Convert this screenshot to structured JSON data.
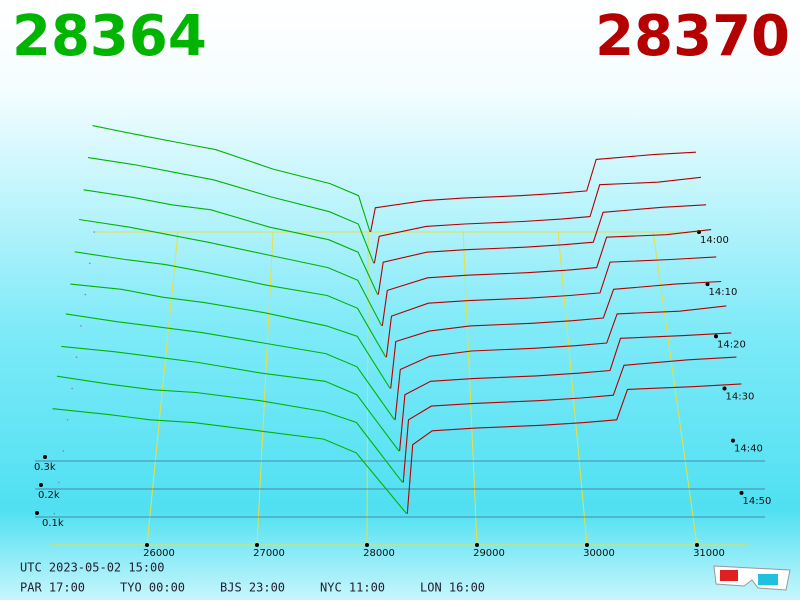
{
  "chart_data": {
    "type": "depth3d",
    "bid_price": 28364,
    "ask_price": 28370,
    "bid_color": "#00b400",
    "ask_color": "#b40000",
    "xlim": [
      25118,
      31482
    ],
    "xticks": [
      26000,
      27000,
      28000,
      29000,
      30000,
      31000
    ],
    "ylim": [
      0,
      1
    ],
    "yticks": [
      {
        "value": 0.1,
        "label": "0.1k"
      },
      {
        "value": 0.2,
        "label": "0.2k"
      },
      {
        "value": 0.3,
        "label": "0.3k"
      }
    ],
    "zlim": [
      840,
      900
    ],
    "zticks": [
      {
        "value": 840,
        "label": "14:00"
      },
      {
        "value": 850,
        "label": "14:10"
      },
      {
        "value": 860,
        "label": "14:20"
      },
      {
        "value": 870,
        "label": "14:30"
      },
      {
        "value": 880,
        "label": "14:40"
      },
      {
        "value": 890,
        "label": "14:50"
      }
    ],
    "timestamp": "UTC 2023-05-02 15:00",
    "clocks": [
      "PAR 17:00",
      "TYO 00:00",
      "BJS 23:00",
      "NYC 11:00",
      "LON 16:00"
    ],
    "snapshots": [
      {
        "time": 840,
        "bids": {
          "x": [
            25100,
            25600,
            26000,
            26400,
            27000,
            27600,
            27900,
            28020
          ],
          "values": [
            0.44,
            0.4,
            0.37,
            0.34,
            0.26,
            0.2,
            0.15,
            0
          ]
        },
        "asks": {
          "x": [
            28026,
            28076,
            28600,
            29000,
            29600,
            30000,
            30300,
            30400,
            31000,
            31450
          ],
          "values": [
            0,
            0.1,
            0.13,
            0.14,
            0.15,
            0.16,
            0.17,
            0.3,
            0.32,
            0.33
          ]
        }
      },
      {
        "time": 846,
        "bids": {
          "x": [
            25100,
            25600,
            26000,
            26400,
            27000,
            27600,
            27900,
            28060
          ],
          "values": [
            0.43,
            0.4,
            0.37,
            0.34,
            0.27,
            0.21,
            0.16,
            0
          ]
        },
        "asks": {
          "x": [
            28066,
            28116,
            28600,
            29000,
            29600,
            30000,
            30300,
            30400,
            31000,
            31450
          ],
          "values": [
            0,
            0.11,
            0.15,
            0.16,
            0.17,
            0.18,
            0.19,
            0.32,
            0.33,
            0.35
          ]
        }
      },
      {
        "time": 852,
        "bids": {
          "x": [
            25100,
            25600,
            26000,
            26400,
            27000,
            27600,
            27900,
            28100
          ],
          "values": [
            0.42,
            0.39,
            0.36,
            0.34,
            0.27,
            0.22,
            0.17,
            0
          ]
        },
        "asks": {
          "x": [
            28106,
            28156,
            28600,
            29000,
            29600,
            30000,
            30300,
            30400,
            31000,
            31450
          ],
          "values": [
            0,
            0.13,
            0.17,
            0.18,
            0.19,
            0.2,
            0.21,
            0.33,
            0.35,
            0.36
          ]
        }
      },
      {
        "time": 858,
        "bids": {
          "x": [
            25100,
            25600,
            26000,
            26400,
            27000,
            27600,
            27900,
            28140
          ],
          "values": [
            0.42,
            0.39,
            0.36,
            0.33,
            0.28,
            0.23,
            0.18,
            0
          ]
        },
        "asks": {
          "x": [
            28146,
            28196,
            28600,
            29000,
            29600,
            30000,
            30300,
            30400,
            31000,
            31450
          ],
          "values": [
            0,
            0.14,
            0.19,
            0.2,
            0.21,
            0.22,
            0.23,
            0.35,
            0.36,
            0.38
          ]
        }
      },
      {
        "time": 864,
        "bids": {
          "x": [
            25100,
            25600,
            26000,
            26400,
            27000,
            27600,
            27900,
            28180
          ],
          "values": [
            0.41,
            0.38,
            0.36,
            0.33,
            0.28,
            0.24,
            0.19,
            0
          ]
        },
        "asks": {
          "x": [
            28186,
            28236,
            28600,
            29000,
            29600,
            30000,
            30300,
            30400,
            31000,
            31450
          ],
          "values": [
            0,
            0.16,
            0.21,
            0.22,
            0.23,
            0.24,
            0.25,
            0.37,
            0.38,
            0.39
          ]
        }
      },
      {
        "time": 870,
        "bids": {
          "x": [
            25100,
            25600,
            26000,
            26400,
            27000,
            27600,
            27900,
            28220
          ],
          "values": [
            0.4,
            0.38,
            0.35,
            0.33,
            0.29,
            0.24,
            0.2,
            0
          ]
        },
        "asks": {
          "x": [
            28226,
            28276,
            28600,
            29000,
            29600,
            30000,
            30300,
            30400,
            31000,
            31450
          ],
          "values": [
            0,
            0.18,
            0.22,
            0.24,
            0.25,
            0.26,
            0.27,
            0.38,
            0.4,
            0.41
          ]
        }
      },
      {
        "time": 876,
        "bids": {
          "x": [
            25100,
            25600,
            26000,
            26400,
            27000,
            27600,
            27900,
            28260
          ],
          "values": [
            0.4,
            0.37,
            0.35,
            0.33,
            0.29,
            0.25,
            0.2,
            0
          ]
        },
        "asks": {
          "x": [
            28266,
            28316,
            28600,
            29000,
            29600,
            30000,
            30300,
            30400,
            31000,
            31450
          ],
          "values": [
            0,
            0.19,
            0.24,
            0.26,
            0.27,
            0.28,
            0.29,
            0.4,
            0.41,
            0.43
          ]
        }
      },
      {
        "time": 882,
        "bids": {
          "x": [
            25100,
            25600,
            26000,
            26400,
            27000,
            27600,
            27900,
            28300
          ],
          "values": [
            0.39,
            0.37,
            0.35,
            0.33,
            0.29,
            0.26,
            0.21,
            0
          ]
        },
        "asks": {
          "x": [
            28306,
            28356,
            28600,
            29000,
            29600,
            30000,
            30300,
            30400,
            31000,
            31450
          ],
          "values": [
            0,
            0.21,
            0.26,
            0.27,
            0.28,
            0.29,
            0.3,
            0.42,
            0.43,
            0.44
          ]
        }
      },
      {
        "time": 888,
        "bids": {
          "x": [
            25100,
            25600,
            26000,
            26400,
            27000,
            27600,
            27900,
            28330
          ],
          "values": [
            0.39,
            0.36,
            0.34,
            0.33,
            0.3,
            0.26,
            0.22,
            0
          ]
        },
        "asks": {
          "x": [
            28336,
            28386,
            28600,
            29000,
            29600,
            30000,
            30300,
            30400,
            31000,
            31450
          ],
          "values": [
            0,
            0.23,
            0.28,
            0.29,
            0.3,
            0.31,
            0.32,
            0.43,
            0.45,
            0.46
          ]
        }
      },
      {
        "time": 894,
        "bids": {
          "x": [
            25100,
            25600,
            26000,
            26400,
            27000,
            27600,
            27900,
            28364
          ],
          "values": [
            0.38,
            0.36,
            0.34,
            0.33,
            0.3,
            0.27,
            0.22,
            0
          ]
        },
        "asks": {
          "x": [
            28370,
            28420,
            28600,
            29000,
            29600,
            30000,
            30300,
            30400,
            31000,
            31450
          ],
          "values": [
            0,
            0.25,
            0.3,
            0.31,
            0.32,
            0.33,
            0.34,
            0.45,
            0.46,
            0.47
          ]
        }
      }
    ]
  }
}
